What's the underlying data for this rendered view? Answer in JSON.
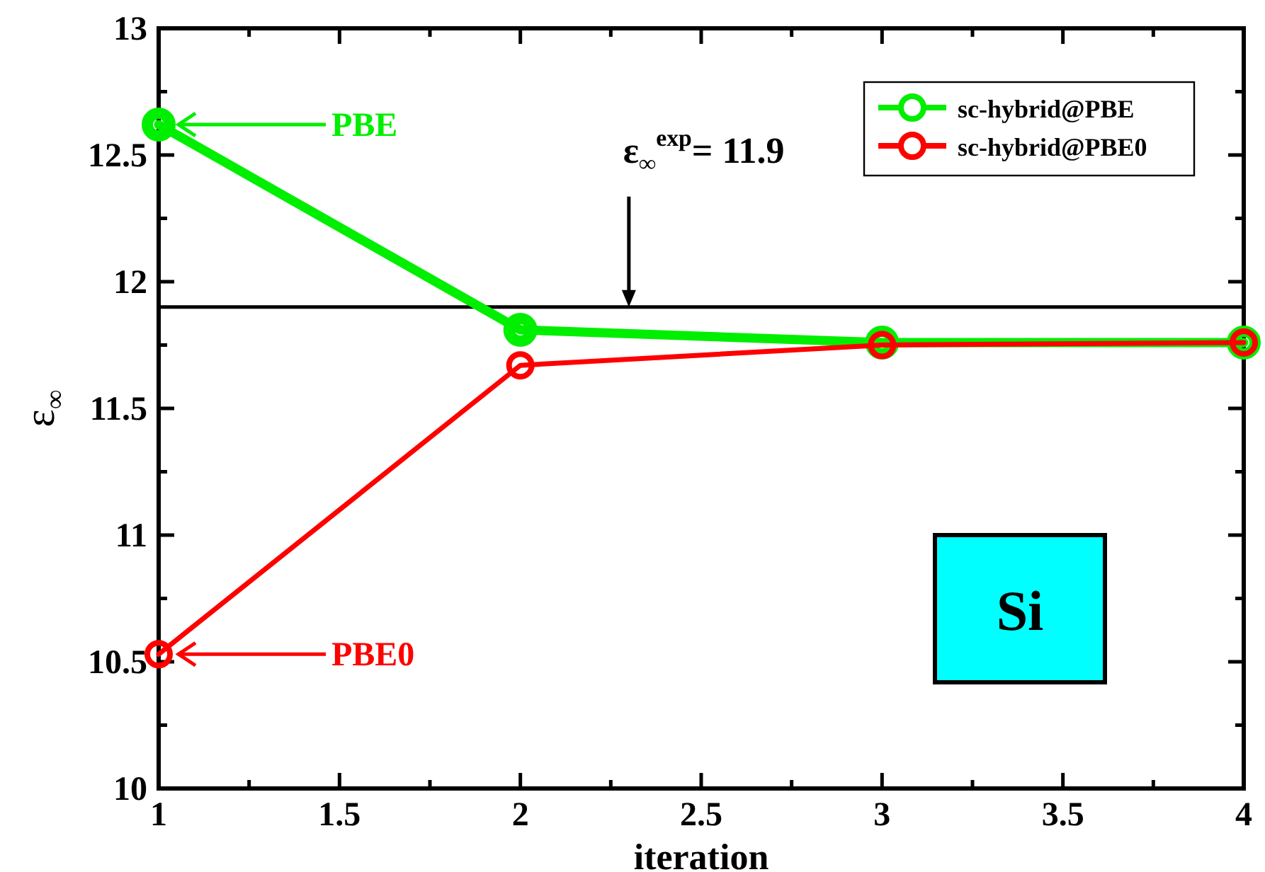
{
  "chart_data": {
    "type": "line",
    "xlabel": "iteration",
    "ylabel": "ε$_{∞}$",
    "x": [
      1,
      2,
      3,
      4
    ],
    "series": [
      {
        "name": "sc-hybrid@PBE",
        "color": "#00ee00",
        "values": [
          12.62,
          11.81,
          11.76,
          11.76
        ]
      },
      {
        "name": "sc-hybrid@PBE0",
        "color": "#ff0000",
        "values": [
          10.53,
          11.67,
          11.75,
          11.76
        ]
      }
    ],
    "xlim": [
      1,
      4
    ],
    "ylim": [
      10,
      13
    ],
    "xticks": [
      1,
      {
        "value": 1.25,
        "label": null
      },
      1.5,
      {
        "value": 1.75,
        "label": null
      },
      2,
      {
        "value": 2.25,
        "label": null
      },
      2.5,
      {
        "value": 2.75,
        "label": null
      },
      3,
      {
        "value": 3.25,
        "label": null
      },
      3.5,
      {
        "value": 3.75,
        "label": null
      },
      4
    ],
    "yticks": [
      10,
      {
        "value": 10.25,
        "label": null
      },
      10.5,
      {
        "value": 10.75,
        "label": null
      },
      11,
      {
        "value": 11.25,
        "label": null
      },
      11.5,
      {
        "value": 11.75,
        "label": null
      },
      12,
      {
        "value": 12.25,
        "label": null
      },
      12.5,
      {
        "value": 12.75,
        "label": null
      },
      13
    ],
    "ref_lines": [
      {
        "axis": "y",
        "value": 11.9,
        "color": "#000000"
      }
    ],
    "annotations": [
      "ε$_{∞}$$^{exp}$= 11.9",
      "PBE",
      "PBE0",
      "Si"
    ],
    "marker": "circle",
    "line_style": "solid",
    "legend": "top right",
    "grid": false
  }
}
